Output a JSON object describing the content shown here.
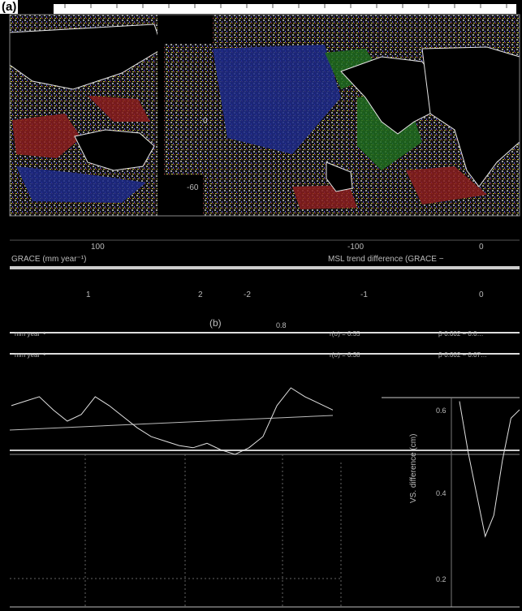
{
  "panel_a": {
    "label": "(a)",
    "lat_labels": [
      "0",
      "-60"
    ],
    "lon_labels": [
      "100",
      "-100",
      "0"
    ],
    "colorbar_left_title": "GRACE (mm year⁻¹)",
    "colorbar_right_title": "MSL trend difference (GRACE −",
    "colorbar_left_ticks": [
      "1",
      "2"
    ],
    "colorbar_right_ticks": [
      "-2",
      "-1",
      "0"
    ]
  },
  "panel_b": {
    "label": "(b)",
    "legend": [
      {
        "left": "mm year⁻¹",
        "mid": "r(σ) = 0.55",
        "right": "β·0.002 − 0.0…"
      },
      {
        "left": "mm year⁻¹",
        "mid": "r(σ) = 0.38",
        "right": "β·0.002 − 0.07…"
      }
    ],
    "y_tick_top": "0.8"
  },
  "panel_c": {
    "ylabel": "VS. difference (cm)",
    "y_ticks": [
      "0.6",
      "0.4",
      "0.2"
    ]
  },
  "colors": {
    "ocean_red": "#8a1d1d",
    "ocean_blue": "#1d2a8a",
    "ocean_green": "#1e6b1e",
    "land": "#000000",
    "coast": "#e6e6e6"
  },
  "chart_data": [
    {
      "type": "heatmap",
      "title": "",
      "xlabel": "",
      "ylabel": "",
      "x_ticks": [
        "100",
        "-100",
        "0"
      ],
      "y_ticks": [
        "0",
        "-60"
      ]
    },
    {
      "type": "line",
      "title": "",
      "xlabel": "",
      "ylabel": "",
      "series": [
        {
          "values": [
            0.62,
            0.64,
            0.66,
            0.6,
            0.55,
            0.58,
            0.66,
            0.62,
            0.57,
            0.52,
            0.48,
            0.46,
            0.44,
            0.43,
            0.45,
            0.42,
            0.4,
            0.43,
            0.48,
            0.62,
            0.7,
            0.66,
            0.63,
            0.6
          ]
        }
      ]
    },
    {
      "type": "line",
      "title": "",
      "xlabel": "",
      "ylabel": "VS. difference (cm)",
      "ylim": [
        0.2,
        0.6
      ],
      "series": [
        {
          "values": [
            0.62,
            0.5,
            0.4,
            0.3,
            0.35,
            0.48,
            0.58,
            0.6
          ]
        }
      ]
    }
  ]
}
